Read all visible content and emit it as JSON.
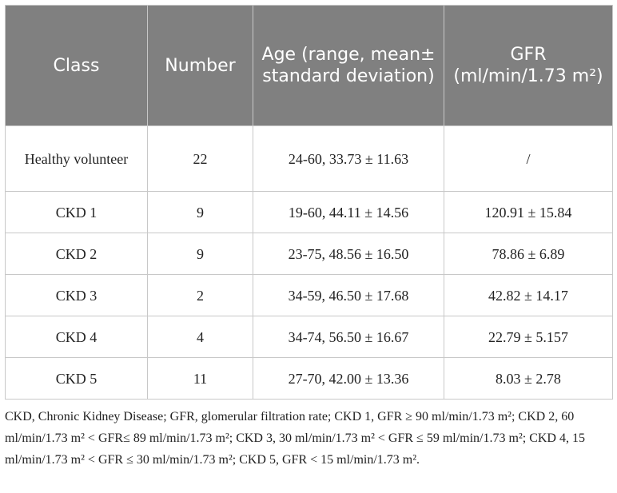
{
  "table": {
    "header": [
      "Class",
      "Number",
      "Age (range, mean± standard deviation)",
      "GFR (ml/min/1.73 m²)"
    ],
    "rows": [
      [
        "Healthy volunteer",
        "22",
        "24-60, 33.73 ± 11.63",
        "/"
      ],
      [
        "CKD 1",
        "9",
        "19-60, 44.11 ± 14.56",
        "120.91 ± 15.84"
      ],
      [
        "CKD 2",
        "9",
        "23-75, 48.56 ± 16.50",
        "78.86 ± 6.89"
      ],
      [
        "CKD 3",
        "2",
        "34-59, 46.50 ± 17.68",
        "42.82 ± 14.17"
      ],
      [
        "CKD 4",
        "4",
        "34-74, 56.50 ± 16.67",
        "22.79 ± 5.157"
      ],
      [
        "CKD 5",
        "11",
        "27-70, 42.00 ± 13.36",
        "8.03 ± 2.78"
      ]
    ]
  },
  "footnote": "CKD, Chronic Kidney Disease; GFR, glomerular filtration rate; CKD 1, GFR ≥ 90 ml/min/1.73 m²; CKD 2, 60 ml/min/1.73 m² < GFR≤ 89 ml/min/1.73 m²; CKD 3, 30 ml/min/1.73 m² < GFR ≤ 59 ml/min/1.73 m²; CKD 4, 15 ml/min/1.73 m² < GFR ≤ 30 ml/min/1.73 m²; CKD 5, GFR < 15 ml/min/1.73 m²."
}
